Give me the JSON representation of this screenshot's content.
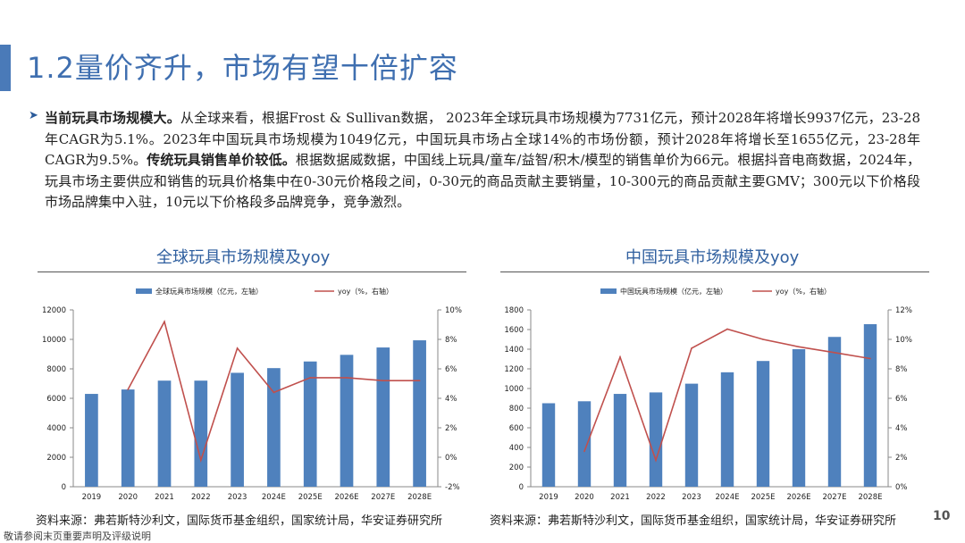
{
  "page": {
    "title": "1.2量价齐升，市场有望十倍扩容",
    "page_number": "10",
    "disclaimer": "敬请参阅末页重要声明及评级说明",
    "colors": {
      "accent": "#4a7ab8",
      "bar": "#4f81bd",
      "line": "#c0504d",
      "title": "#3f6fb0"
    }
  },
  "bullet": {
    "icon": "triangle-right-icon",
    "lead_bold": "当前玩具市场规模大。",
    "text_1": "从全球来看，根据Frost & Sullivan数据， 2023年全球玩具市场规模为7731亿元，预计2028年将增长9937亿元，23-28年CAGR为5.1%。2023年中国玩具市场规模为1049亿元，中国玩具市场占全球14%的市场份额，预计2028年将增长至1655亿元，23-28年CAGR为9.5%。",
    "mid_bold": "传统玩具销售单价较低。",
    "text_2": "根据数据威数据，中国线上玩具/童车/益智/积木/模型的销售单价为66元。根据抖音电商数据，2024年，玩具市场主要供应和销售的玩具价格集中在0-30元价格段之间，0-30元的商品贡献主要销量，10-300元的商品贡献主要GMV；300元以下价格段市场品牌集中入驻，10元以下价格段多品牌竞争，竞争激烈。"
  },
  "charts": {
    "global": {
      "title": "全球玩具市场规模及yoy",
      "source": "资料来源：弗若斯特沙利文，国际货币基金组织，国家统计局，华安证券研究所"
    },
    "china": {
      "title": "中国玩具市场规模及yoy",
      "source": "资料来源：弗若斯特沙利文，国际货币基金组织，国家统计局，华安证券研究所"
    }
  },
  "chart_data": [
    {
      "type": "bar",
      "categories": [
        "2019",
        "2020",
        "2021",
        "2022",
        "2023",
        "2024E",
        "2025E",
        "2026E",
        "2027E",
        "2028E"
      ],
      "series": [
        {
          "name": "全球玩具市场规模（亿元，左轴）",
          "type": "bar",
          "axis": "left",
          "values": [
            6300,
            6600,
            7200,
            7200,
            7731,
            8050,
            8500,
            8950,
            9450,
            9937
          ]
        },
        {
          "name": "yoy（%，右轴）",
          "type": "line",
          "axis": "right",
          "values": [
            null,
            4.6,
            9.2,
            -0.2,
            7.4,
            4.4,
            5.4,
            5.4,
            5.2,
            5.2
          ]
        }
      ],
      "ylim_left": [
        0,
        12000
      ],
      "yticks_left": [
        "0",
        "2000",
        "4000",
        "6000",
        "8000",
        "10000",
        "12000"
      ],
      "ylim_right": [
        -2,
        10
      ],
      "yticks_right": [
        "-2%",
        "0%",
        "2%",
        "4%",
        "6%",
        "8%",
        "10%"
      ],
      "legend": "top",
      "grid": false
    },
    {
      "type": "bar",
      "categories": [
        "2019",
        "2020",
        "2021",
        "2022",
        "2023",
        "2024E",
        "2025E",
        "2026E",
        "2027E",
        "2028E"
      ],
      "series": [
        {
          "name": "中国玩具市场规模（亿元，左轴）",
          "type": "bar",
          "axis": "left",
          "values": [
            850,
            870,
            945,
            960,
            1049,
            1165,
            1280,
            1400,
            1525,
            1655
          ]
        },
        {
          "name": "yoy（%，右轴）",
          "type": "line",
          "axis": "right",
          "values": [
            null,
            2.4,
            8.8,
            1.8,
            9.4,
            10.7,
            10.0,
            9.5,
            9.1,
            8.7
          ]
        }
      ],
      "ylim_left": [
        0,
        1800
      ],
      "yticks_left": [
        "0",
        "200",
        "400",
        "600",
        "800",
        "1000",
        "1200",
        "1400",
        "1600",
        "1800"
      ],
      "ylim_right": [
        0,
        12
      ],
      "yticks_right": [
        "0%",
        "2%",
        "4%",
        "6%",
        "8%",
        "10%",
        "12%"
      ],
      "legend": "top",
      "grid": false
    }
  ]
}
